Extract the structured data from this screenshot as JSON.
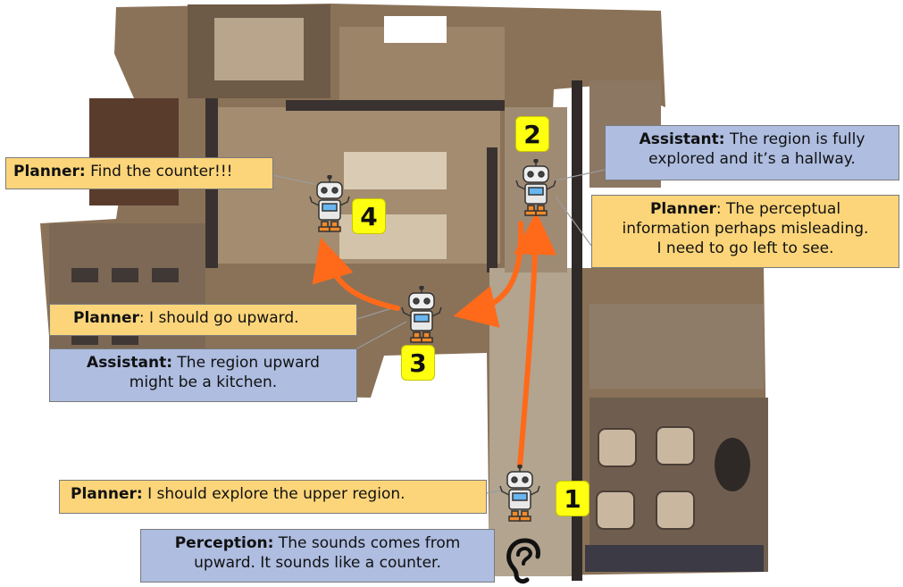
{
  "callouts": {
    "planner_find": {
      "speaker": "Planner:",
      "text": " Find the counter!!!"
    },
    "assistant_hallway": {
      "speaker": "Assistant:",
      "line1": " The region is fully",
      "line2": "explored and it’s a  hallway."
    },
    "planner_misleading": {
      "speaker": "Planner",
      "line1": ": The perceptual",
      "line2": "information perhaps misleading.",
      "line3": "I need to go left to see."
    },
    "planner_upward": {
      "speaker": "Planner",
      "text": ": I should go upward."
    },
    "assistant_kitchen": {
      "speaker": "Assistant:",
      "line1": " The region upward",
      "line2": "might be a kitchen."
    },
    "planner_explore": {
      "speaker": "Planner:",
      "text": " I should explore the upper region."
    },
    "perception_sound": {
      "speaker": "Perception:",
      "line1": " The sounds comes from",
      "line2": "upward. It sounds like a counter."
    }
  },
  "steps": [
    "1",
    "2",
    "3",
    "4"
  ],
  "icons": {
    "robot": "robot-icon",
    "ear": "ear-icon"
  },
  "colors": {
    "planner": "#fcd57a",
    "assistant": "#aebde0",
    "arrow": "#ff6a1a",
    "badge": "#ffff10"
  }
}
